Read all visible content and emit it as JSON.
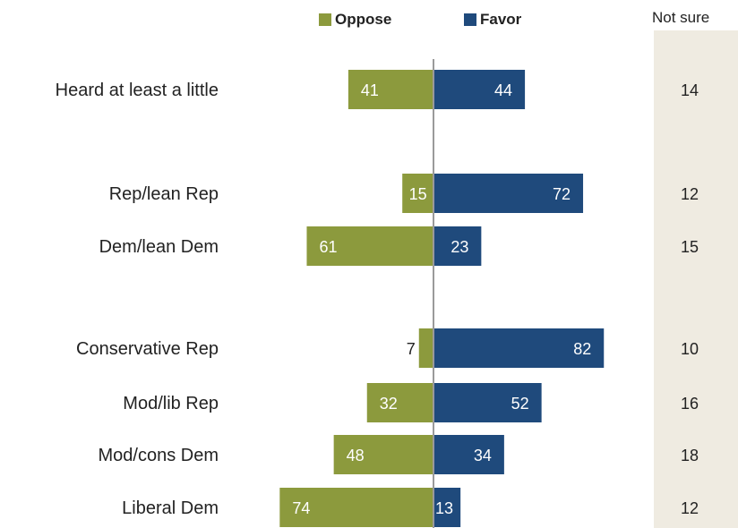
{
  "chart_data": {
    "type": "bar",
    "orientation": "horizontal-diverging",
    "legend": {
      "placement": "top",
      "entries": [
        "Oppose",
        "Favor"
      ]
    },
    "notsure_header": "Not sure",
    "categories": [
      "Heard at least a little",
      "Rep/lean Rep",
      "Dem/lean Dem",
      "Conservative Rep",
      "Mod/lib Rep",
      "Mod/cons Dem",
      "Liberal Dem"
    ],
    "series": [
      {
        "name": "Oppose",
        "values": [
          41,
          15,
          61,
          7,
          32,
          48,
          74
        ]
      },
      {
        "name": "Favor",
        "values": [
          44,
          72,
          23,
          82,
          52,
          34,
          13
        ]
      },
      {
        "name": "Not sure",
        "values": [
          14,
          12,
          15,
          10,
          16,
          18,
          12
        ]
      }
    ],
    "group_breaks_after": [
      0,
      2
    ],
    "grid": false
  },
  "colors": {
    "oppose": "#8c9a3d",
    "favor": "#1f4a7c",
    "notsure_bg": "#efebe1",
    "axis": "#9a9a9a"
  }
}
